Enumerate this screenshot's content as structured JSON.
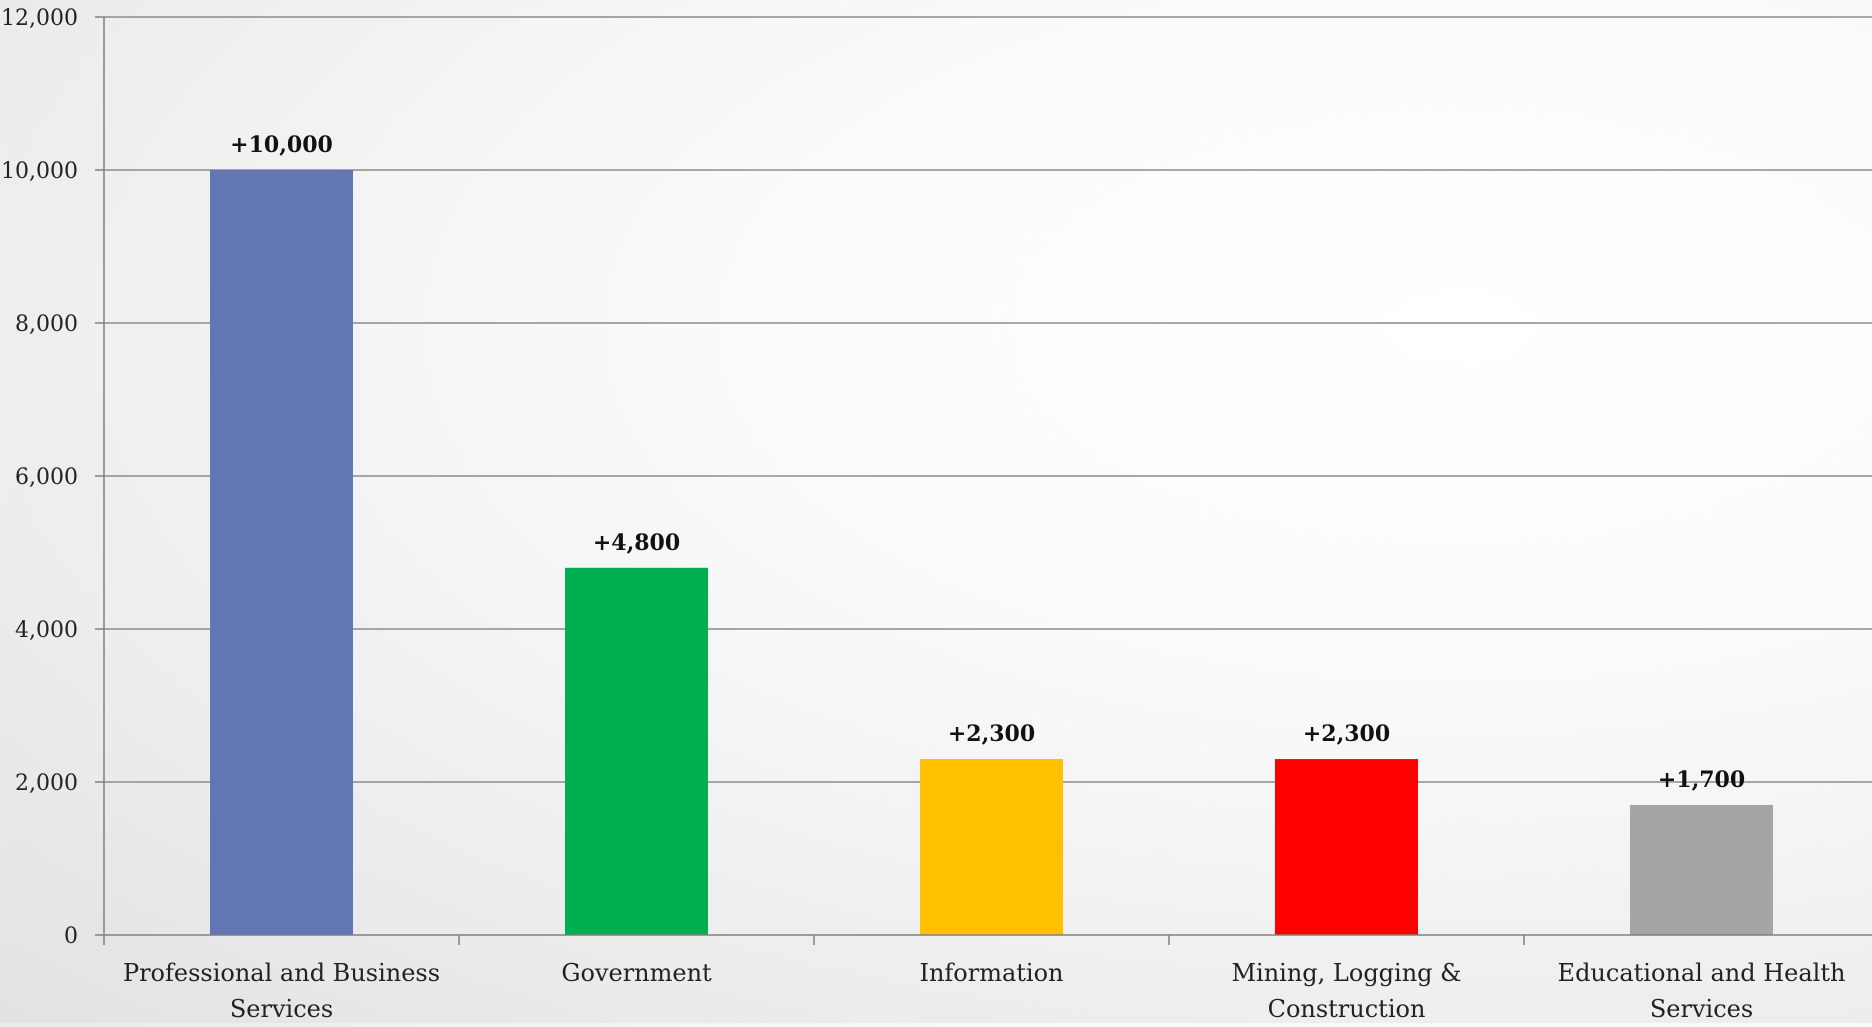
{
  "chart_data": {
    "type": "bar",
    "title": "",
    "xlabel": "",
    "ylabel": "",
    "ylim": [
      0,
      12000
    ],
    "yticks": [
      0,
      2000,
      4000,
      6000,
      8000,
      10000,
      12000
    ],
    "ytick_labels": [
      "0",
      "2,000",
      "4,000",
      "6,000",
      "8,000",
      "10,000",
      "12,000"
    ],
    "grid": true,
    "legend": "none",
    "categories": [
      [
        "Professional and Business",
        "Services"
      ],
      [
        "Government"
      ],
      [
        "Information"
      ],
      [
        "Mining, Logging &",
        "Construction"
      ],
      [
        "Educational and Health",
        "Services"
      ]
    ],
    "values": [
      10000,
      4800,
      2300,
      2300,
      1700
    ],
    "data_labels": [
      "+10,000",
      "+4,800",
      "+2,300",
      "+2,300",
      "+1,700"
    ],
    "colors": [
      "#6276b4",
      "#00b050",
      "#ffc000",
      "#ff0000",
      "#a5a5a5"
    ],
    "grid_color": "#8c8c8c",
    "axis_color": "#808080"
  }
}
